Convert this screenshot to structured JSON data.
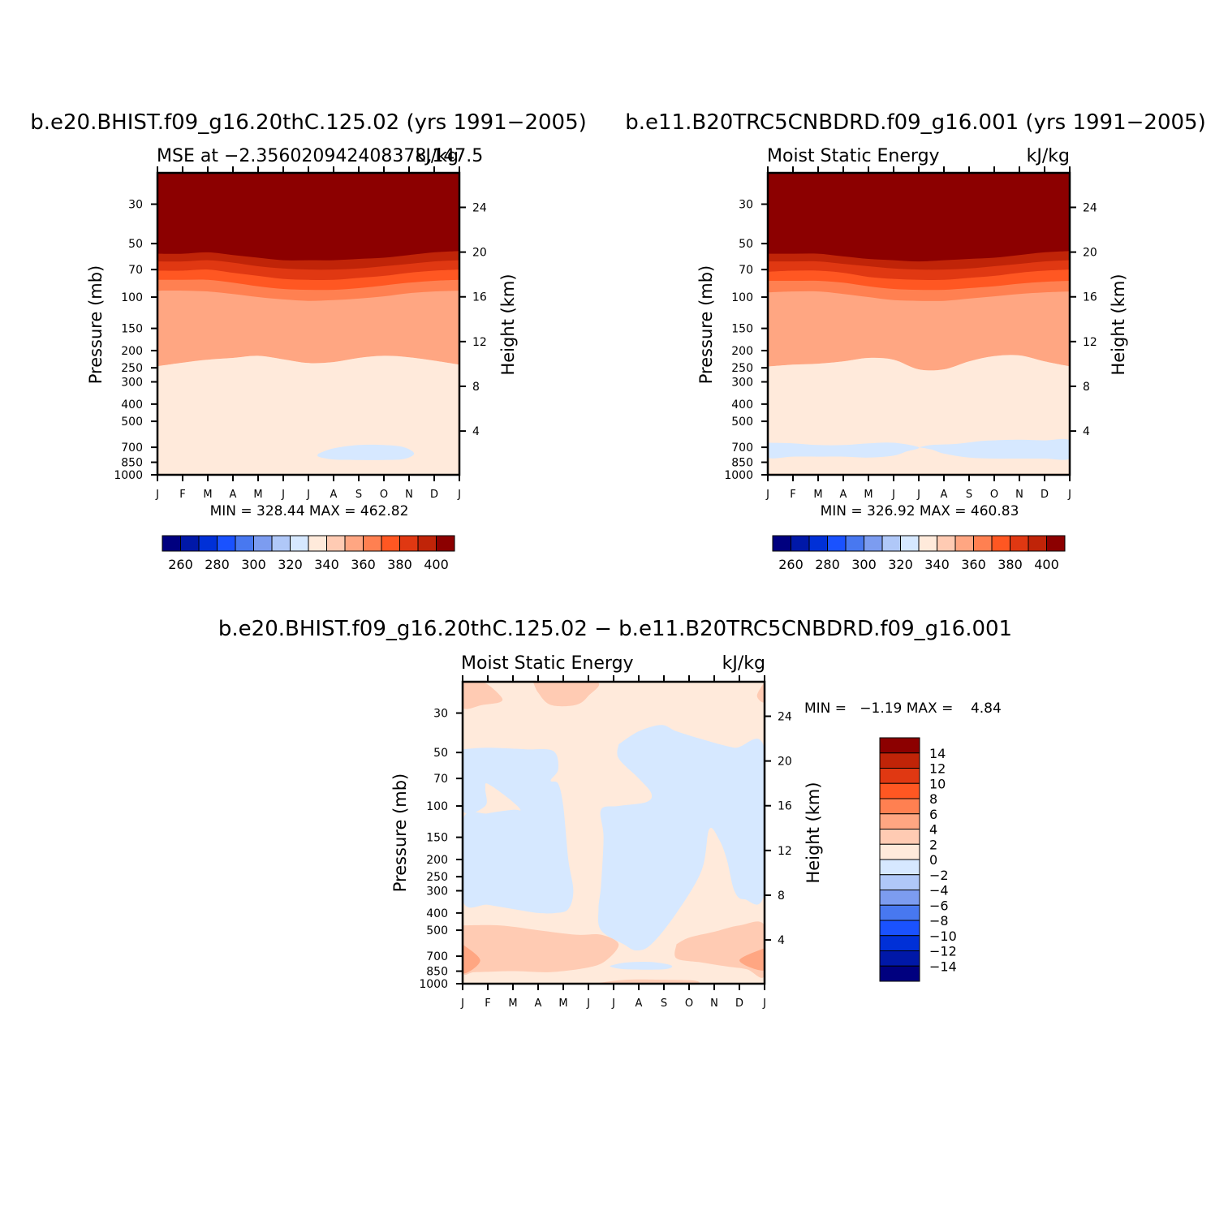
{
  "figure": {
    "top_left": {
      "title": "b.e20.BHIST.f09_g16.20thC.125.02 (yrs 1991−2005)",
      "left_label": "MSE at −2.356020942408378,147.5",
      "right_label": "kJ/kg",
      "stats": "MIN = 328.44 MAX = 462.82"
    },
    "top_right": {
      "title": "b.e11.B20TRC5CNBDRD.f09_g16.001 (yrs 1991−2005)",
      "left_label": "Moist Static Energy",
      "right_label": "kJ/kg",
      "stats": "MIN = 326.92 MAX = 460.83"
    },
    "bottom": {
      "title": "b.e20.BHIST.f09_g16.20thC.125.02 − b.e11.B20TRC5CNBDRD.f09_g16.001",
      "left_label": "Moist Static Energy",
      "right_label": "kJ/kg",
      "stats": "MIN =   −1.19 MAX =    4.84"
    }
  },
  "chart_data": [
    {
      "type": "heatmap",
      "panel": "top_left",
      "title": "b.e20.BHIST.f09_g16.20thC.125.02 (yrs 1991−2005)",
      "ylabel": "Pressure (mb)",
      "y2label": "Height (km)",
      "x_ticks": [
        "J",
        "F",
        "M",
        "A",
        "M",
        "J",
        "J",
        "A",
        "S",
        "O",
        "N",
        "D",
        "J"
      ],
      "y_ticks": [
        30,
        50,
        70,
        100,
        150,
        200,
        250,
        300,
        400,
        500,
        700,
        850,
        1000
      ],
      "y2_ticks": [
        24,
        20,
        16,
        12,
        8,
        4
      ],
      "ylim": [
        1000,
        20
      ],
      "min": 328.44,
      "max": 462.82,
      "colorbar_labels": [
        260,
        280,
        300,
        320,
        340,
        360,
        380,
        400
      ],
      "contour_boundaries_mb": [
        {
          "level": 400,
          "mb": [
            57,
            57,
            56,
            58,
            60,
            62,
            62,
            62,
            61,
            60,
            58,
            56,
            55
          ]
        },
        {
          "level": 390,
          "mb": [
            63,
            63,
            62,
            64,
            67,
            69,
            70,
            70,
            69,
            67,
            65,
            63,
            62
          ]
        },
        {
          "level": 380,
          "mb": [
            71,
            71,
            70,
            73,
            76,
            79,
            80,
            80,
            78,
            76,
            73,
            71,
            70
          ]
        },
        {
          "level": 370,
          "mb": [
            80,
            80,
            80,
            83,
            87,
            90,
            91,
            91,
            89,
            86,
            83,
            81,
            80
          ]
        },
        {
          "level": 360,
          "mb": [
            92,
            92,
            93,
            96,
            100,
            103,
            105,
            104,
            102,
            99,
            95,
            93,
            92
          ]
        },
        {
          "level": 350,
          "mb": [
            245,
            234,
            225,
            220,
            214,
            224,
            235,
            232,
            220,
            214,
            218,
            228,
            240
          ]
        },
        {
          "level": 340,
          "mb": [
            990,
            990,
            990,
            990,
            992,
            990,
            990,
            991,
            990,
            990,
            990,
            990,
            990
          ]
        }
      ],
      "negative_regions": [
        {
          "level": 320,
          "x": [
            6.4,
            7.0,
            8.0,
            9.0,
            9.8,
            10.2,
            9.8,
            9.0,
            8.0,
            7.0,
            6.4
          ],
          "mb": [
            760,
            710,
            680,
            680,
            700,
            760,
            815,
            825,
            825,
            820,
            790
          ]
        }
      ]
    },
    {
      "type": "heatmap",
      "panel": "top_right",
      "title": "b.e11.B20TRC5CNBDRD.f09_g16.001 (yrs 1991−2005)",
      "ylabel": "Pressure (mb)",
      "y2label": "Height (km)",
      "x_ticks": [
        "J",
        "F",
        "M",
        "A",
        "M",
        "J",
        "J",
        "A",
        "S",
        "O",
        "N",
        "D",
        "J"
      ],
      "y_ticks": [
        30,
        50,
        70,
        100,
        150,
        200,
        250,
        300,
        400,
        500,
        700,
        850,
        1000
      ],
      "y2_ticks": [
        24,
        20,
        16,
        12,
        8,
        4
      ],
      "ylim": [
        1000,
        20
      ],
      "min": 326.92,
      "max": 460.83,
      "colorbar_labels": [
        260,
        280,
        300,
        320,
        340,
        360,
        380,
        400
      ],
      "contour_boundaries_mb": [
        {
          "level": 400,
          "mb": [
            57,
            57,
            57,
            59,
            61,
            62,
            63,
            62,
            61,
            60,
            58,
            56,
            55
          ]
        },
        {
          "level": 390,
          "mb": [
            63,
            63,
            63,
            65,
            67,
            69,
            70,
            70,
            69,
            67,
            65,
            63,
            62
          ]
        },
        {
          "level": 380,
          "mb": [
            72,
            71,
            71,
            73,
            77,
            79,
            80,
            80,
            78,
            76,
            73,
            71,
            70
          ]
        },
        {
          "level": 370,
          "mb": [
            81,
            81,
            81,
            83,
            87,
            90,
            91,
            91,
            89,
            87,
            84,
            82,
            81
          ]
        },
        {
          "level": 360,
          "mb": [
            94,
            93,
            93,
            96,
            100,
            104,
            105,
            105,
            102,
            99,
            96,
            94,
            93
          ]
        },
        {
          "level": 350,
          "mb": [
            246,
            240,
            237,
            230,
            220,
            225,
            255,
            255,
            230,
            215,
            213,
            230,
            245
          ]
        },
        {
          "level": 340,
          "mb": [
            985,
            985,
            985,
            985,
            985,
            985,
            985,
            985,
            985,
            985,
            985,
            985,
            985
          ]
        }
      ],
      "negative_regions": [
        {
          "level": 320,
          "x": [
            0,
            1.0,
            2.0,
            3.0,
            4.0,
            5.0,
            6.0,
            5.5,
            5.0,
            4.0,
            3.0,
            2.0,
            1.0,
            0
          ],
          "mb": [
            660,
            665,
            680,
            680,
            665,
            660,
            700,
            740,
            780,
            800,
            790,
            790,
            790,
            800
          ]
        },
        {
          "level": 320,
          "x": [
            6.0,
            6.5,
            7.5,
            8.5,
            9.0,
            10.0,
            11.0,
            12.0,
            12.0,
            11.0,
            10.0,
            9.0,
            8.0,
            7.0,
            6.5
          ],
          "mb": [
            700,
            680,
            670,
            645,
            640,
            635,
            640,
            640,
            810,
            810,
            810,
            810,
            800,
            760,
            720
          ]
        }
      ]
    },
    {
      "type": "heatmap",
      "panel": "bottom",
      "title": "b.e20.BHIST.f09_g16.20thC.125.02 − b.e11.B20TRC5CNBDRD.f09_g16.001",
      "ylabel": "Pressure (mb)",
      "y2label": "Height (km)",
      "x_ticks": [
        "J",
        "F",
        "M",
        "A",
        "M",
        "J",
        "J",
        "A",
        "S",
        "O",
        "N",
        "D",
        "J"
      ],
      "y_ticks": [
        30,
        50,
        70,
        100,
        150,
        200,
        250,
        300,
        400,
        500,
        700,
        850,
        1000
      ],
      "y2_ticks": [
        24,
        20,
        16,
        12,
        8,
        4
      ],
      "ylim": [
        1000,
        20
      ],
      "min": -1.19,
      "max": 4.84,
      "colorbar_labels": [
        14,
        12,
        10,
        8,
        6,
        4,
        2,
        0,
        -2,
        -4,
        -6,
        -8,
        -10,
        -12,
        -14
      ],
      "background_level": 0,
      "regions": [
        {
          "level": 2,
          "x": [
            0,
            0.8,
            1.5,
            1.5,
            0.8,
            0
          ],
          "mb": [
            20,
            20,
            24,
            26,
            27,
            28
          ]
        },
        {
          "level": 2,
          "x": [
            2.8,
            5.3,
            5.0,
            4.5,
            3.5,
            3.0
          ],
          "mb": [
            20,
            20,
            24,
            27,
            27,
            23
          ]
        },
        {
          "level": 2,
          "x": [
            12,
            11.7,
            12
          ],
          "mb": [
            20,
            24,
            26
          ]
        },
        {
          "level": -2,
          "x": [
            0,
            1.0,
            2.5,
            3.6,
            3.8,
            3.5,
            3.8,
            4.0,
            4.2,
            4.4,
            4.2,
            3.7,
            3.0,
            2.0,
            1.0,
            0,
            0,
            1.0,
            2.0,
            2.3,
            1.8,
            1.0,
            0.9,
            0.9,
            0
          ],
          "mb": [
            48,
            47,
            48,
            49,
            62,
            72,
            75,
            100,
            200,
            300,
            380,
            400,
            400,
            380,
            360,
            340,
            120,
            110,
            105,
            105,
            90,
            75,
            80,
            100,
            105
          ]
        },
        {
          "level": -2,
          "x": [
            6.2,
            7.0,
            7.9,
            8.5,
            9.5,
            10.8,
            12,
            12,
            11.2,
            10.8,
            10.5,
            10.2,
            9.8,
            9.5,
            8.5,
            7.5,
            6.9,
            6.4,
            5.5,
            5.4,
            5.5,
            5.6,
            5.5,
            6.2,
            7.3,
            7.5,
            7.0,
            6.2
          ],
          "mb": [
            45,
            38,
            35,
            38,
            42,
            47,
            48,
            300,
            335,
            300,
            200,
            155,
            135,
            230,
            400,
            600,
            650,
            600,
            500,
            380,
            280,
            150,
            105,
            100,
            95,
            85,
            70,
            54
          ]
        },
        {
          "level": 2,
          "x": [
            0,
            1.5,
            3.0,
            4.5,
            5.5,
            6.2,
            5.7,
            5.0,
            3.5,
            2.0,
            0.5,
            0
          ],
          "mb": [
            470,
            470,
            500,
            530,
            530,
            600,
            740,
            810,
            860,
            850,
            860,
            850
          ]
        },
        {
          "level": 4,
          "x": [
            0,
            0.7,
            0
          ],
          "mb": [
            600,
            740,
            870
          ]
        },
        {
          "level": 2,
          "x": [
            8.5,
            9.0,
            10.0,
            11.0,
            12,
            12,
            11.3,
            10.5,
            9.5,
            8.5
          ],
          "mb": [
            600,
            550,
            510,
            470,
            470,
            900,
            830,
            800,
            760,
            720
          ]
        },
        {
          "level": 4,
          "x": [
            12,
            11.0,
            12
          ],
          "mb": [
            630,
            740,
            840
          ]
        },
        {
          "level": -2,
          "x": [
            5.9,
            6.5,
            7.5,
            8.3,
            8.0,
            6.5,
            5.9
          ],
          "mb": [
            790,
            760,
            755,
            790,
            830,
            830,
            805
          ]
        },
        {
          "level": 2,
          "x": [
            5.2,
            6.5,
            8.0,
            9.2,
            9.0,
            5.2
          ],
          "mb": [
            1000,
            950,
            950,
            960,
            1000,
            1000
          ]
        }
      ]
    }
  ]
}
